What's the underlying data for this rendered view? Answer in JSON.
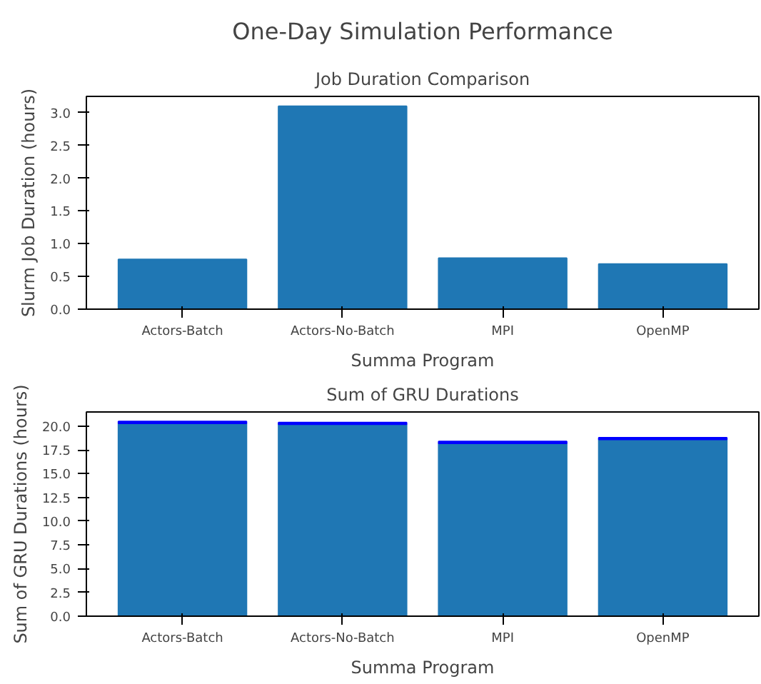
{
  "chart_data": [
    {
      "type": "bar",
      "title": "One-Day Simulation Performance",
      "subtitle": "Job Duration Comparison",
      "xlabel": "Summa Program",
      "ylabel": "Slurm Job Duration (hours)",
      "categories": [
        "Actors-Batch",
        "Actors-No-Batch",
        "MPI",
        "OpenMP"
      ],
      "series": [
        {
          "color": "#1f77b4",
          "values": [
            0.76,
            3.1,
            0.78,
            0.69
          ]
        }
      ],
      "ylim": [
        0,
        3.25
      ],
      "yticks": [
        {
          "value": 0,
          "label": "0.0"
        },
        0.5,
        {
          "value": 1,
          "label": "1.0"
        },
        1.5,
        {
          "value": 2,
          "label": "2.0"
        },
        2.5,
        {
          "value": 3,
          "label": "3.0"
        }
      ],
      "grid": false
    },
    {
      "type": "bar",
      "stacked": true,
      "subtitle": "Sum of GRU Durations",
      "xlabel": "Summa Program",
      "ylabel": "Sum of GRU Durations (hours)",
      "categories": [
        "Actors-Batch",
        "Actors-No-Batch",
        "MPI",
        "OpenMP"
      ],
      "series": [
        {
          "color": "#1f77b4",
          "values": [
            20.3,
            20.2,
            18.2,
            18.6
          ]
        },
        {
          "color": "#0000ff",
          "values": [
            0.2,
            0.2,
            0.2,
            0.2
          ]
        }
      ],
      "ylim": [
        0,
        21.5
      ],
      "yticks": [
        {
          "value": 0,
          "label": "0.0"
        },
        {
          "value": 2.5,
          "label": "2.5"
        },
        {
          "value": 5,
          "label": "5.0"
        },
        {
          "value": 7.5,
          "label": "7.5"
        },
        {
          "value": 10,
          "label": "10.0"
        },
        {
          "value": 12.5,
          "label": "12.5"
        },
        {
          "value": 15,
          "label": "15.0"
        },
        {
          "value": 17.5,
          "label": "17.5"
        },
        {
          "value": 20,
          "label": "20.0"
        }
      ],
      "grid": false
    }
  ]
}
